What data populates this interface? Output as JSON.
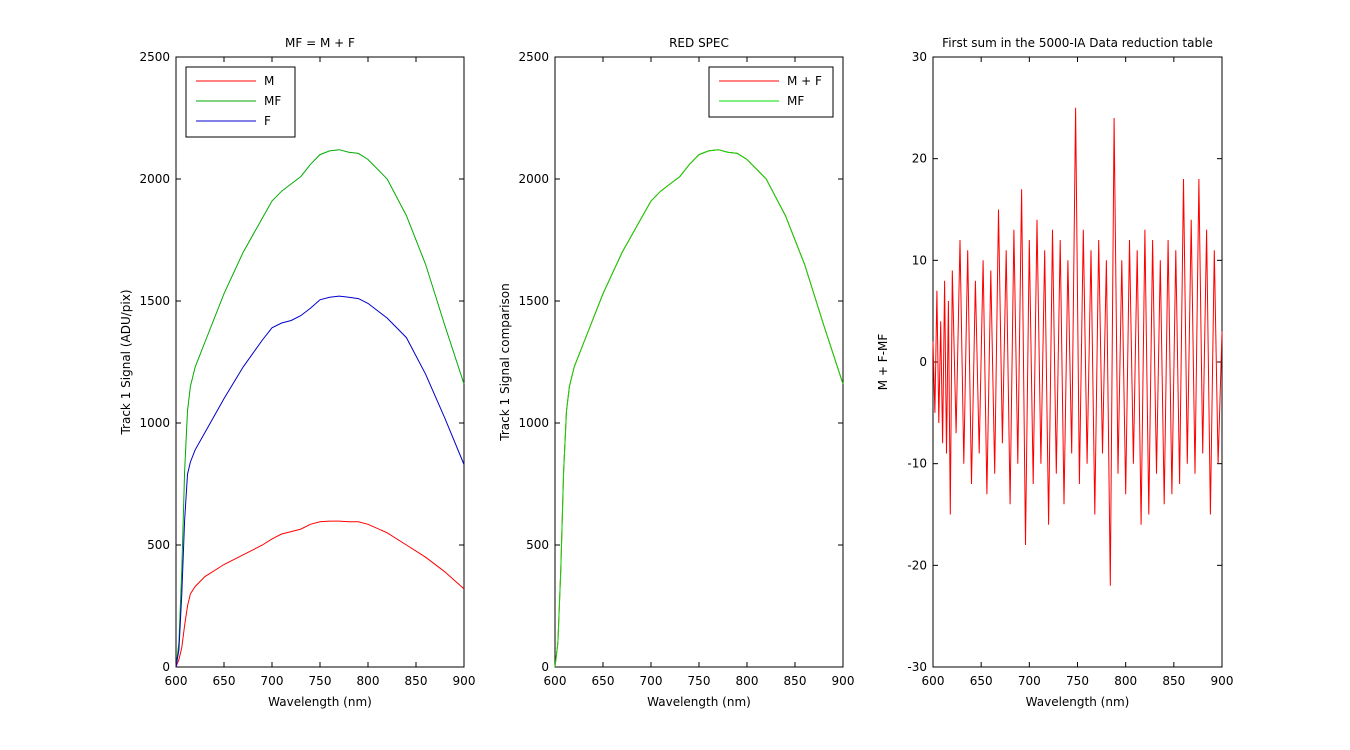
{
  "chart_data": [
    {
      "type": "line",
      "title": "MF = M + F",
      "xlabel": "Wavelength (nm)",
      "ylabel": "Track 1 Signal (ADU/pix)",
      "xlim": [
        600,
        900
      ],
      "ylim": [
        0,
        2500
      ],
      "xticks": [
        600,
        650,
        700,
        750,
        800,
        850,
        900
      ],
      "yticks": [
        0,
        500,
        1000,
        1500,
        2000,
        2500
      ],
      "grid": false,
      "legend": "top-left",
      "series": [
        {
          "name": "M",
          "color": "#ff0000",
          "x": [
            600,
            603,
            606,
            609,
            612,
            615,
            620,
            630,
            650,
            670,
            690,
            700,
            710,
            720,
            730,
            740,
            750,
            760,
            770,
            780,
            790,
            800,
            820,
            840,
            860,
            880,
            900
          ],
          "y": [
            0,
            30,
            80,
            170,
            250,
            300,
            330,
            370,
            420,
            460,
            500,
            525,
            545,
            555,
            565,
            585,
            595,
            598,
            598,
            595,
            595,
            585,
            550,
            500,
            450,
            390,
            320
          ]
        },
        {
          "name": "MF",
          "color": "#00aa00",
          "x": [
            600,
            603,
            606,
            609,
            612,
            615,
            620,
            630,
            650,
            670,
            690,
            700,
            710,
            720,
            730,
            740,
            750,
            760,
            770,
            780,
            790,
            800,
            820,
            840,
            860,
            880,
            900
          ],
          "y": [
            0,
            100,
            400,
            800,
            1050,
            1150,
            1230,
            1330,
            1530,
            1700,
            1840,
            1910,
            1950,
            1980,
            2010,
            2060,
            2100,
            2115,
            2120,
            2110,
            2105,
            2080,
            2000,
            1850,
            1650,
            1400,
            1160
          ]
        },
        {
          "name": "F",
          "color": "#0000cc",
          "x": [
            600,
            603,
            606,
            609,
            612,
            615,
            620,
            630,
            650,
            670,
            690,
            700,
            710,
            720,
            730,
            740,
            750,
            760,
            770,
            780,
            790,
            800,
            820,
            840,
            860,
            880,
            900
          ],
          "y": [
            0,
            70,
            300,
            600,
            790,
            840,
            890,
            960,
            1100,
            1230,
            1340,
            1390,
            1410,
            1420,
            1440,
            1470,
            1505,
            1515,
            1520,
            1515,
            1510,
            1490,
            1430,
            1350,
            1200,
            1020,
            830
          ]
        }
      ]
    },
    {
      "type": "line",
      "title": "RED SPEC",
      "xlabel": "Wavelength (nm)",
      "ylabel": "Track 1 Signal comparison",
      "xlim": [
        600,
        900
      ],
      "ylim": [
        0,
        2500
      ],
      "xticks": [
        600,
        650,
        700,
        750,
        800,
        850,
        900
      ],
      "yticks": [
        0,
        500,
        1000,
        1500,
        2000,
        2500
      ],
      "grid": false,
      "legend": "top-right",
      "series": [
        {
          "name": "M + F",
          "color": "#ff0000",
          "x": [
            600,
            603,
            606,
            609,
            612,
            615,
            620,
            630,
            650,
            670,
            690,
            700,
            710,
            720,
            730,
            740,
            750,
            760,
            770,
            780,
            790,
            800,
            820,
            840,
            860,
            880,
            900
          ],
          "y": [
            0,
            100,
            400,
            800,
            1050,
            1150,
            1230,
            1330,
            1530,
            1700,
            1840,
            1910,
            1950,
            1980,
            2010,
            2060,
            2100,
            2115,
            2120,
            2110,
            2105,
            2080,
            2000,
            1850,
            1650,
            1400,
            1160
          ]
        },
        {
          "name": "MF",
          "color": "#00dd00",
          "x": [
            600,
            603,
            606,
            609,
            612,
            615,
            620,
            630,
            650,
            670,
            690,
            700,
            710,
            720,
            730,
            740,
            750,
            760,
            770,
            780,
            790,
            800,
            820,
            840,
            860,
            880,
            900
          ],
          "y": [
            0,
            100,
            400,
            800,
            1050,
            1150,
            1230,
            1330,
            1530,
            1700,
            1840,
            1910,
            1950,
            1980,
            2010,
            2060,
            2100,
            2115,
            2120,
            2110,
            2105,
            2080,
            2000,
            1850,
            1650,
            1400,
            1160
          ]
        }
      ]
    },
    {
      "type": "line",
      "title": "First sum in the 5000-IA Data reduction table",
      "xlabel": "Wavelength (nm)",
      "ylabel": "M + F-MF",
      "xlim": [
        600,
        900
      ],
      "ylim": [
        -30,
        30
      ],
      "xticks": [
        600,
        650,
        700,
        750,
        800,
        850,
        900
      ],
      "yticks": [
        -30,
        -20,
        -10,
        0,
        10,
        20,
        30
      ],
      "grid": false,
      "legend": "none",
      "series": [
        {
          "color": "#ff0000",
          "x": [
            600,
            602,
            604,
            606,
            608,
            610,
            612,
            614,
            616,
            618,
            620,
            624,
            628,
            632,
            636,
            640,
            644,
            648,
            652,
            656,
            660,
            664,
            668,
            672,
            676,
            680,
            684,
            688,
            692,
            696,
            700,
            704,
            708,
            712,
            716,
            720,
            724,
            728,
            732,
            736,
            740,
            744,
            748,
            752,
            756,
            760,
            764,
            768,
            772,
            776,
            780,
            784,
            788,
            792,
            796,
            800,
            804,
            808,
            812,
            816,
            820,
            824,
            828,
            832,
            836,
            840,
            844,
            848,
            852,
            856,
            860,
            864,
            868,
            872,
            876,
            880,
            884,
            888,
            892,
            896,
            900
          ],
          "y": [
            2,
            -5,
            7,
            -6,
            4,
            -8,
            8,
            -9,
            6,
            -15,
            9,
            -7,
            12,
            -10,
            11,
            -12,
            8,
            -9,
            10,
            -13,
            9,
            -11,
            15,
            -8,
            11,
            -14,
            13,
            -10,
            17,
            -18,
            12,
            -12,
            14,
            -10,
            11,
            -16,
            13,
            -11,
            12,
            -14,
            10,
            -9,
            25,
            -12,
            13,
            -10,
            11,
            -15,
            12,
            -9,
            10,
            -22,
            24,
            -11,
            10,
            -13,
            12,
            -10,
            11,
            -16,
            13,
            -15,
            12,
            -11,
            10,
            -14,
            12,
            -13,
            11,
            -12,
            18,
            -10,
            14,
            -11,
            18,
            -9,
            13,
            -15,
            11,
            -10,
            3
          ]
        }
      ]
    }
  ]
}
